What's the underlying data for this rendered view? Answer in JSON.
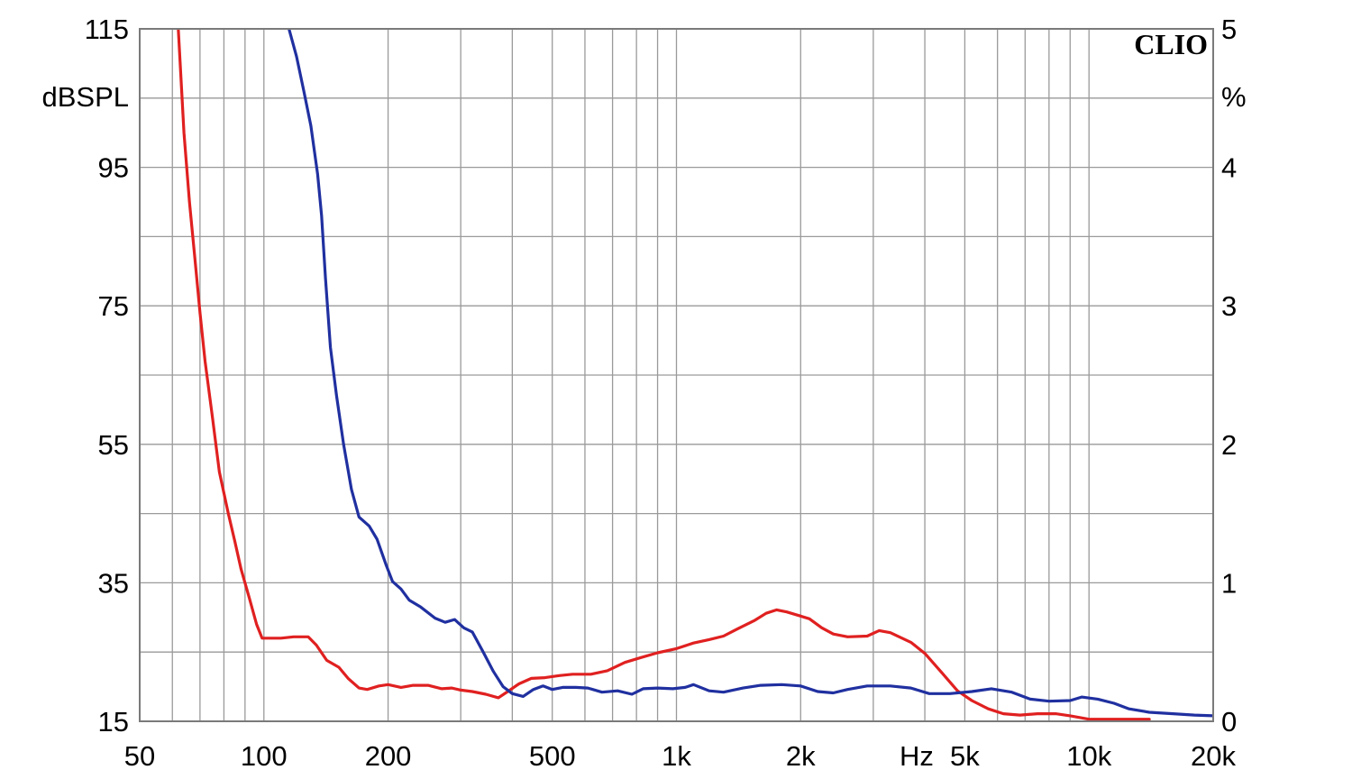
{
  "brand": "CLIO",
  "chart_data": {
    "type": "line",
    "title": "",
    "x_scale": "log",
    "xlim": [
      50,
      20000
    ],
    "ylim_left": [
      15,
      115
    ],
    "ylim_right": [
      0,
      5
    ],
    "xlabel": "Hz",
    "ylabel_left": "dBSPL",
    "ylabel_right": "%",
    "grid": true,
    "x_ticks": [
      {
        "value": 50,
        "label": "50"
      },
      {
        "value": 100,
        "label": "100"
      },
      {
        "value": 200,
        "label": "200"
      },
      {
        "value": 500,
        "label": "500"
      },
      {
        "value": 1000,
        "label": "1k"
      },
      {
        "value": 2000,
        "label": "2k"
      },
      {
        "value": 5000,
        "label": "5k"
      },
      {
        "value": 10000,
        "label": "10k"
      },
      {
        "value": 20000,
        "label": "20k"
      }
    ],
    "y_ticks_left": [
      {
        "value": 115,
        "label": "115"
      },
      {
        "value": 95,
        "label": "95"
      },
      {
        "value": 75,
        "label": "75"
      },
      {
        "value": 55,
        "label": "55"
      },
      {
        "value": 35,
        "label": "35"
      },
      {
        "value": 15,
        "label": "15"
      }
    ],
    "y_ticks_right": [
      {
        "value": 5,
        "label": "5"
      },
      {
        "value": 4,
        "label": "4"
      },
      {
        "value": 3,
        "label": "3"
      },
      {
        "value": 2,
        "label": "2"
      },
      {
        "value": 1,
        "label": "1"
      },
      {
        "value": 0,
        "label": "0"
      }
    ],
    "series": [
      {
        "color": "#e02020",
        "axis": "left",
        "points": [
          [
            62,
            115
          ],
          [
            64,
            100
          ],
          [
            66,
            90
          ],
          [
            68,
            82
          ],
          [
            70,
            74
          ],
          [
            72,
            67
          ],
          [
            75,
            59
          ],
          [
            78,
            51
          ],
          [
            82,
            45
          ],
          [
            85,
            41
          ],
          [
            88,
            37
          ],
          [
            92,
            33
          ],
          [
            96,
            29
          ],
          [
            99,
            27
          ],
          [
            103,
            27
          ],
          [
            110,
            27
          ],
          [
            118,
            27.2
          ],
          [
            128,
            27.2
          ],
          [
            134,
            26
          ],
          [
            142,
            23.8
          ],
          [
            152,
            22.8
          ],
          [
            160,
            21.2
          ],
          [
            170,
            19.8
          ],
          [
            178,
            19.6
          ],
          [
            190,
            20.1
          ],
          [
            200,
            20.3
          ],
          [
            215,
            19.9
          ],
          [
            230,
            20.2
          ],
          [
            250,
            20.2
          ],
          [
            270,
            19.7
          ],
          [
            285,
            19.8
          ],
          [
            300,
            19.5
          ],
          [
            320,
            19.3
          ],
          [
            345,
            18.9
          ],
          [
            370,
            18.4
          ],
          [
            390,
            19.3
          ],
          [
            415,
            20.4
          ],
          [
            445,
            21.2
          ],
          [
            480,
            21.3
          ],
          [
            520,
            21.6
          ],
          [
            560,
            21.8
          ],
          [
            620,
            21.8
          ],
          [
            680,
            22.3
          ],
          [
            750,
            23.5
          ],
          [
            820,
            24.2
          ],
          [
            900,
            24.9
          ],
          [
            1000,
            25.5
          ],
          [
            1100,
            26.3
          ],
          [
            1200,
            26.8
          ],
          [
            1300,
            27.3
          ],
          [
            1400,
            28.3
          ],
          [
            1550,
            29.6
          ],
          [
            1650,
            30.6
          ],
          [
            1750,
            31.1
          ],
          [
            1850,
            30.8
          ],
          [
            2000,
            30.2
          ],
          [
            2100,
            29.8
          ],
          [
            2250,
            28.5
          ],
          [
            2400,
            27.6
          ],
          [
            2600,
            27.2
          ],
          [
            2900,
            27.3
          ],
          [
            3100,
            28.1
          ],
          [
            3300,
            27.8
          ],
          [
            3700,
            26.4
          ],
          [
            4000,
            24.8
          ],
          [
            4400,
            22.0
          ],
          [
            4800,
            19.4
          ],
          [
            5200,
            18.0
          ],
          [
            5700,
            16.8
          ],
          [
            6200,
            16.1
          ],
          [
            6800,
            15.9
          ],
          [
            7500,
            16.1
          ],
          [
            8300,
            16.1
          ],
          [
            9000,
            15.8
          ],
          [
            10000,
            15.3
          ],
          [
            11000,
            15.3
          ],
          [
            12500,
            15.3
          ],
          [
            14000,
            15.3
          ]
        ]
      },
      {
        "color": "#2030a0",
        "axis": "left",
        "points": [
          [
            115,
            115
          ],
          [
            120,
            111
          ],
          [
            125,
            106
          ],
          [
            130,
            101
          ],
          [
            135,
            94
          ],
          [
            138,
            88
          ],
          [
            141,
            79
          ],
          [
            145,
            69
          ],
          [
            150,
            62
          ],
          [
            156,
            55
          ],
          [
            163,
            48.5
          ],
          [
            170,
            44.5
          ],
          [
            180,
            43.2
          ],
          [
            188,
            41.3
          ],
          [
            198,
            37.5
          ],
          [
            205,
            35.2
          ],
          [
            215,
            34.1
          ],
          [
            225,
            32.5
          ],
          [
            240,
            31.5
          ],
          [
            260,
            29.9
          ],
          [
            275,
            29.3
          ],
          [
            290,
            29.7
          ],
          [
            305,
            28.5
          ],
          [
            320,
            27.9
          ],
          [
            340,
            25.0
          ],
          [
            360,
            22.2
          ],
          [
            380,
            20.0
          ],
          [
            400,
            19.0
          ],
          [
            425,
            18.6
          ],
          [
            450,
            19.6
          ],
          [
            475,
            20.1
          ],
          [
            500,
            19.6
          ],
          [
            530,
            19.9
          ],
          [
            570,
            19.9
          ],
          [
            610,
            19.8
          ],
          [
            660,
            19.2
          ],
          [
            720,
            19.4
          ],
          [
            780,
            18.9
          ],
          [
            830,
            19.7
          ],
          [
            900,
            19.8
          ],
          [
            980,
            19.7
          ],
          [
            1050,
            19.9
          ],
          [
            1100,
            20.3
          ],
          [
            1200,
            19.4
          ],
          [
            1300,
            19.2
          ],
          [
            1450,
            19.8
          ],
          [
            1600,
            20.2
          ],
          [
            1800,
            20.3
          ],
          [
            2000,
            20.1
          ],
          [
            2200,
            19.3
          ],
          [
            2400,
            19.1
          ],
          [
            2600,
            19.6
          ],
          [
            2900,
            20.1
          ],
          [
            3300,
            20.1
          ],
          [
            3700,
            19.8
          ],
          [
            4100,
            19.0
          ],
          [
            4600,
            19.0
          ],
          [
            5200,
            19.3
          ],
          [
            5800,
            19.7
          ],
          [
            6500,
            19.2
          ],
          [
            7200,
            18.2
          ],
          [
            8000,
            17.9
          ],
          [
            9000,
            18.0
          ],
          [
            9600,
            18.5
          ],
          [
            10500,
            18.2
          ],
          [
            11500,
            17.6
          ],
          [
            12500,
            16.8
          ],
          [
            14000,
            16.3
          ],
          [
            16000,
            16.1
          ],
          [
            18000,
            15.9
          ],
          [
            20000,
            15.8
          ]
        ]
      }
    ]
  }
}
